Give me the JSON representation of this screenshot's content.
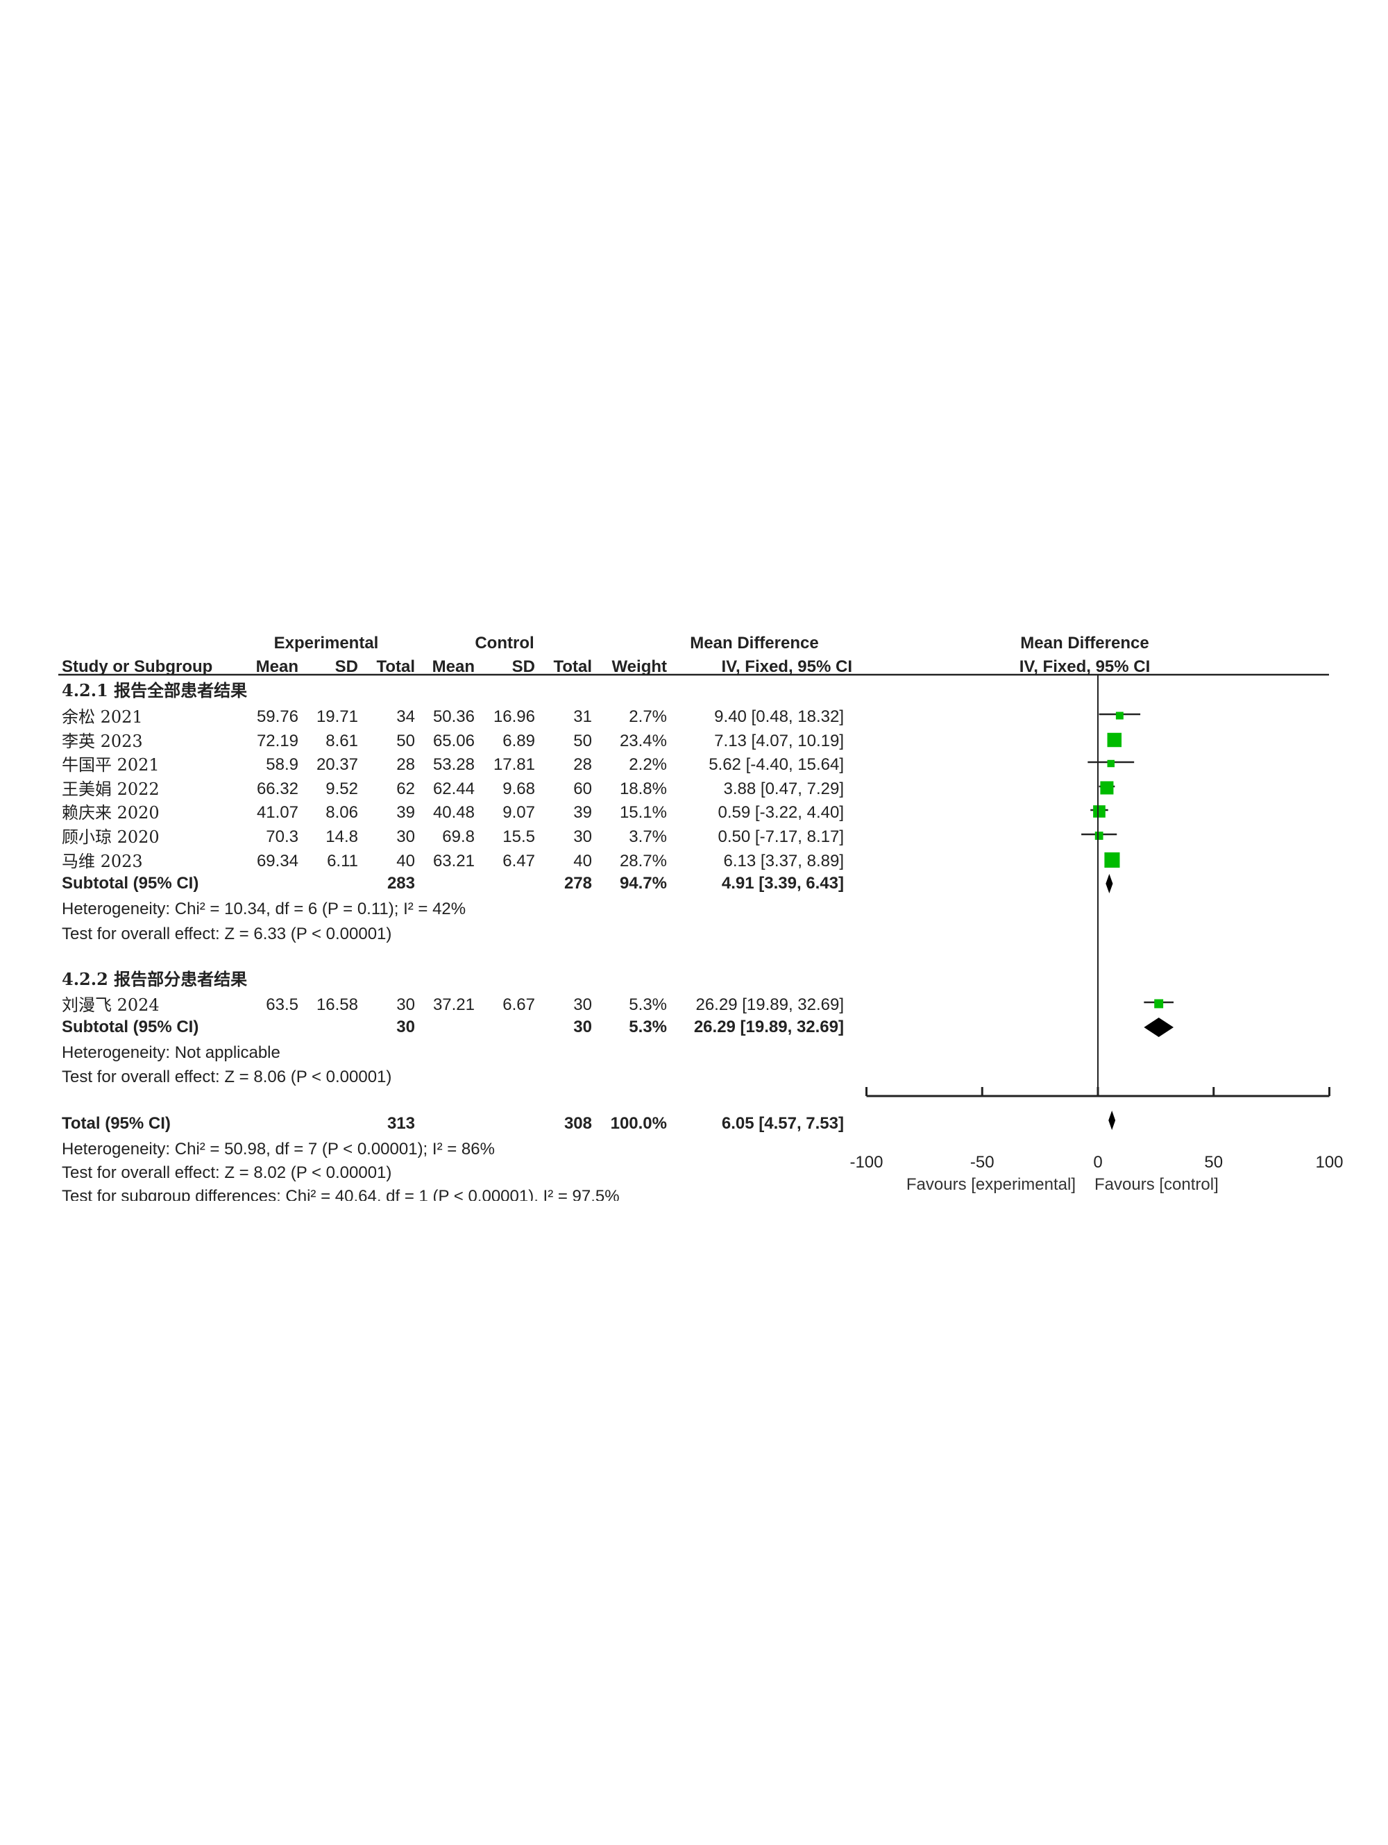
{
  "headers": {
    "experimental": "Experimental",
    "control": "Control",
    "mean_difference": "Mean Difference",
    "study": "Study or Subgroup",
    "mean": "Mean",
    "sd": "SD",
    "total": "Total",
    "weight": "Weight",
    "ci": "IV, Fixed, 95% CI",
    "plot_title": "Mean Difference",
    "plot_subtitle": "IV, Fixed, 95% CI"
  },
  "groups": [
    {
      "title": "4.2.1 报告全部患者结果",
      "studies": [
        {
          "name": "余松 2021",
          "e_mean": "59.76",
          "e_sd": "19.71",
          "e_total": "34",
          "c_mean": "50.36",
          "c_sd": "16.96",
          "c_total": "31",
          "weight": "2.7%",
          "ci": "9.40 [0.48, 18.32]",
          "md": 9.4,
          "lo": 0.48,
          "hi": 18.32,
          "w": 2.7
        },
        {
          "name": "李英 2023",
          "e_mean": "72.19",
          "e_sd": "8.61",
          "e_total": "50",
          "c_mean": "65.06",
          "c_sd": "6.89",
          "c_total": "50",
          "weight": "23.4%",
          "ci": "7.13 [4.07, 10.19]",
          "md": 7.13,
          "lo": 4.07,
          "hi": 10.19,
          "w": 23.4
        },
        {
          "name": "牛国平 2021",
          "e_mean": "58.9",
          "e_sd": "20.37",
          "e_total": "28",
          "c_mean": "53.28",
          "c_sd": "17.81",
          "c_total": "28",
          "weight": "2.2%",
          "ci": "5.62 [-4.40, 15.64]",
          "md": 5.62,
          "lo": -4.4,
          "hi": 15.64,
          "w": 2.2
        },
        {
          "name": "王美娟 2022",
          "e_mean": "66.32",
          "e_sd": "9.52",
          "e_total": "62",
          "c_mean": "62.44",
          "c_sd": "9.68",
          "c_total": "60",
          "weight": "18.8%",
          "ci": "3.88 [0.47, 7.29]",
          "md": 3.88,
          "lo": 0.47,
          "hi": 7.29,
          "w": 18.8
        },
        {
          "name": "赖庆来 2020",
          "e_mean": "41.07",
          "e_sd": "8.06",
          "e_total": "39",
          "c_mean": "40.48",
          "c_sd": "9.07",
          "c_total": "39",
          "weight": "15.1%",
          "ci": "0.59 [-3.22, 4.40]",
          "md": 0.59,
          "lo": -3.22,
          "hi": 4.4,
          "w": 15.1
        },
        {
          "name": "顾小琼 2020",
          "e_mean": "70.3",
          "e_sd": "14.8",
          "e_total": "30",
          "c_mean": "69.8",
          "c_sd": "15.5",
          "c_total": "30",
          "weight": "3.7%",
          "ci": "0.50 [-7.17, 8.17]",
          "md": 0.5,
          "lo": -7.17,
          "hi": 8.17,
          "w": 3.7
        },
        {
          "name": "马维 2023",
          "e_mean": "69.34",
          "e_sd": "6.11",
          "e_total": "40",
          "c_mean": "63.21",
          "c_sd": "6.47",
          "c_total": "40",
          "weight": "28.7%",
          "ci": "6.13 [3.37, 8.89]",
          "md": 6.13,
          "lo": 3.37,
          "hi": 8.89,
          "w": 28.7
        }
      ],
      "subtotal": {
        "label": "Subtotal (95% CI)",
        "e_total": "283",
        "c_total": "278",
        "weight": "94.7%",
        "ci": "4.91 [3.39, 6.43]",
        "md": 4.91,
        "lo": 3.39,
        "hi": 6.43
      },
      "heterogeneity": "Heterogeneity: Chi² = 10.34, df = 6 (P = 0.11); I² = 42%",
      "overall": "Test for overall effect: Z = 6.33 (P < 0.00001)"
    },
    {
      "title": "4.2.2 报告部分患者结果",
      "studies": [
        {
          "name": "刘漫飞 2024",
          "e_mean": "63.5",
          "e_sd": "16.58",
          "e_total": "30",
          "c_mean": "37.21",
          "c_sd": "6.67",
          "c_total": "30",
          "weight": "5.3%",
          "ci": "26.29 [19.89, 32.69]",
          "md": 26.29,
          "lo": 19.89,
          "hi": 32.69,
          "w": 5.3
        }
      ],
      "subtotal": {
        "label": "Subtotal (95% CI)",
        "e_total": "30",
        "c_total": "30",
        "weight": "5.3%",
        "ci": "26.29 [19.89, 32.69]",
        "md": 26.29,
        "lo": 19.89,
        "hi": 32.69
      },
      "heterogeneity": "Heterogeneity: Not applicable",
      "overall": "Test for overall effect: Z = 8.06 (P < 0.00001)"
    }
  ],
  "total": {
    "label": "Total (95% CI)",
    "e_total": "313",
    "c_total": "308",
    "weight": "100.0%",
    "ci": "6.05 [4.57, 7.53]",
    "md": 6.05,
    "lo": 4.57,
    "hi": 7.53
  },
  "total_heterogeneity": "Heterogeneity: Chi² = 50.98, df = 7 (P < 0.00001); I² = 86%",
  "total_overall": "Test for overall effect: Z = 8.02 (P < 0.00001)",
  "subgroup_differences": "Test for subgroup differences: Chi² = 40.64, df = 1 (P < 0.00001), I² = 97.5%",
  "chart_data": {
    "type": "forest",
    "xlim": [
      -100,
      100
    ],
    "xticks": [
      "-100",
      "-50",
      "0",
      "50",
      "100"
    ],
    "xtick_values": [
      -100,
      -50,
      0,
      50,
      100
    ],
    "left_label": "Favours [experimental]",
    "right_label": "Favours [control]",
    "colors": {
      "study_marker": "#00bb00",
      "summary": "#000000",
      "line": "#222222"
    }
  }
}
